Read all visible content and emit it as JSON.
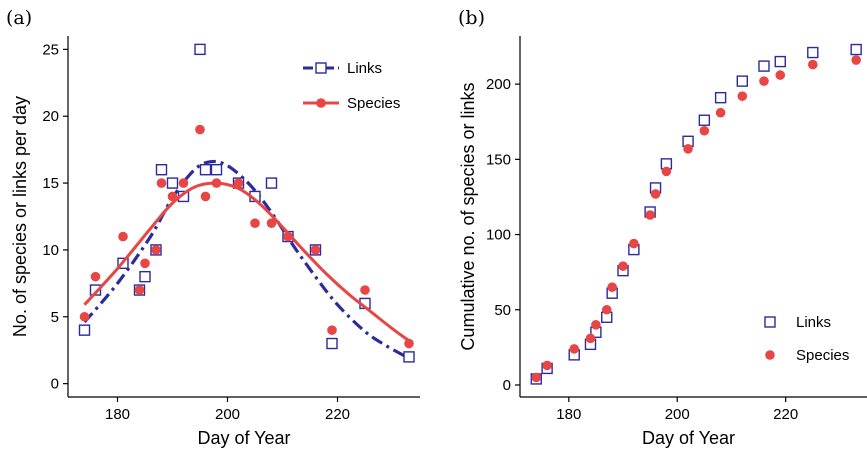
{
  "colors": {
    "links": "#2b2b9e",
    "species": "#e84545",
    "axis": "#000000"
  },
  "chart_data": [
    {
      "panel_label": "(a)",
      "type": "scatter",
      "xlabel": "Day of Year",
      "ylabel": "No. of species or links per day",
      "xlim": [
        171,
        235
      ],
      "ylim": [
        -1,
        26
      ],
      "xticks": [
        180,
        200,
        220
      ],
      "yticks": [
        0,
        5,
        10,
        15,
        20,
        25
      ],
      "legend_position": "top-right",
      "series": [
        {
          "name": "Links",
          "marker": "open-square",
          "fit_line": "dash-dot",
          "points": [
            [
              174,
              4
            ],
            [
              176,
              7
            ],
            [
              181,
              9
            ],
            [
              184,
              7
            ],
            [
              185,
              8
            ],
            [
              187,
              10
            ],
            [
              188,
              16
            ],
            [
              190,
              15
            ],
            [
              192,
              14
            ],
            [
              195,
              25
            ],
            [
              196,
              16
            ],
            [
              198,
              16
            ],
            [
              202,
              15
            ],
            [
              205,
              14
            ],
            [
              208,
              15
            ],
            [
              211,
              11
            ],
            [
              216,
              10
            ],
            [
              219,
              3
            ],
            [
              225,
              6
            ],
            [
              233,
              2
            ]
          ],
          "fit": [
            [
              174,
              4.6
            ],
            [
              180,
              7.5
            ],
            [
              186,
              11.0
            ],
            [
              190,
              13.9
            ],
            [
              194,
              16.0
            ],
            [
              197,
              16.6
            ],
            [
              200,
              16.3
            ],
            [
              204,
              14.9
            ],
            [
              208,
              12.8
            ],
            [
              212,
              10.3
            ],
            [
              216,
              8.0
            ],
            [
              220,
              5.9
            ],
            [
              225,
              3.9
            ],
            [
              229,
              2.8
            ],
            [
              233,
              1.9
            ]
          ]
        },
        {
          "name": "Species",
          "marker": "filled-circle",
          "fit_line": "solid",
          "points": [
            [
              174,
              5
            ],
            [
              176,
              8
            ],
            [
              181,
              11
            ],
            [
              184,
              7
            ],
            [
              185,
              9
            ],
            [
              187,
              10
            ],
            [
              188,
              15
            ],
            [
              190,
              14
            ],
            [
              192,
              15
            ],
            [
              195,
              19
            ],
            [
              196,
              14
            ],
            [
              198,
              15
            ],
            [
              202,
              15
            ],
            [
              205,
              12
            ],
            [
              208,
              12
            ],
            [
              211,
              11
            ],
            [
              216,
              10
            ],
            [
              219,
              4
            ],
            [
              225,
              7
            ],
            [
              233,
              3
            ]
          ],
          "fit": [
            [
              174,
              5.9
            ],
            [
              180,
              8.6
            ],
            [
              186,
              11.6
            ],
            [
              190,
              13.5
            ],
            [
              194,
              14.7
            ],
            [
              198,
              15.0
            ],
            [
              202,
              14.6
            ],
            [
              206,
              13.4
            ],
            [
              210,
              11.7
            ],
            [
              214,
              9.9
            ],
            [
              218,
              8.2
            ],
            [
              222,
              6.7
            ],
            [
              226,
              5.4
            ],
            [
              230,
              4.1
            ],
            [
              233,
              3.2
            ]
          ]
        }
      ]
    },
    {
      "panel_label": "(b)",
      "type": "scatter",
      "xlabel": "Day of Year",
      "ylabel": "Cumulative no. of species or links",
      "xlim": [
        171,
        235
      ],
      "ylim": [
        -8,
        232
      ],
      "xticks": [
        180,
        200,
        220
      ],
      "yticks": [
        0,
        50,
        100,
        150,
        200
      ],
      "legend_position": "bottom-right",
      "series": [
        {
          "name": "Links",
          "marker": "open-square",
          "points": [
            [
              174,
              4
            ],
            [
              176,
              11
            ],
            [
              181,
              20
            ],
            [
              184,
              27
            ],
            [
              185,
              35
            ],
            [
              187,
              45
            ],
            [
              188,
              61
            ],
            [
              190,
              76
            ],
            [
              192,
              90
            ],
            [
              195,
              115
            ],
            [
              196,
              131
            ],
            [
              198,
              147
            ],
            [
              202,
              162
            ],
            [
              205,
              176
            ],
            [
              208,
              191
            ],
            [
              212,
              202
            ],
            [
              216,
              212
            ],
            [
              219,
              215
            ],
            [
              225,
              221
            ],
            [
              233,
              223
            ]
          ]
        },
        {
          "name": "Species",
          "marker": "filled-circle",
          "points": [
            [
              174,
              5
            ],
            [
              176,
              13
            ],
            [
              181,
              24
            ],
            [
              184,
              31
            ],
            [
              185,
              40
            ],
            [
              187,
              50
            ],
            [
              188,
              65
            ],
            [
              190,
              79
            ],
            [
              192,
              94
            ],
            [
              195,
              113
            ],
            [
              196,
              127
            ],
            [
              198,
              142
            ],
            [
              202,
              157
            ],
            [
              205,
              169
            ],
            [
              208,
              181
            ],
            [
              212,
              192
            ],
            [
              216,
              202
            ],
            [
              219,
              206
            ],
            [
              225,
              213
            ],
            [
              233,
              216
            ]
          ]
        }
      ]
    }
  ]
}
